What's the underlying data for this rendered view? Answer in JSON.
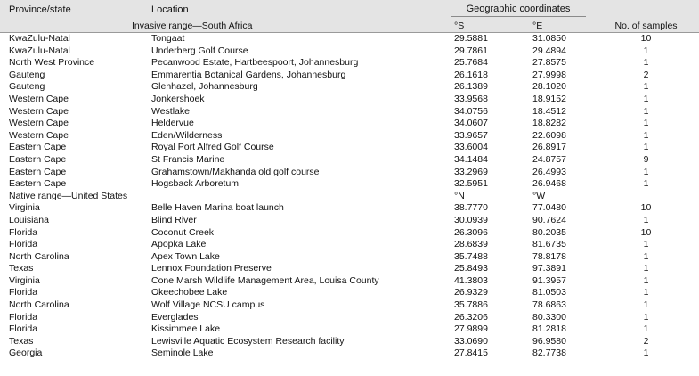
{
  "header": {
    "province": "Province/state",
    "location": "Location",
    "coords": "Geographic coordinates",
    "invasive_label": "Invasive range—South Africa",
    "deg_s": "°S",
    "deg_e": "°E",
    "samples": "No. of samples"
  },
  "native": {
    "label": "Native range—United States",
    "deg_n": "°N",
    "deg_w": "°W"
  },
  "rows_sa": [
    {
      "prov": "KwaZulu-Natal",
      "loc": "Tongaat",
      "a": "29.5881",
      "b": "31.0850",
      "n": "10"
    },
    {
      "prov": "KwaZulu-Natal",
      "loc": "Underberg Golf Course",
      "a": "29.7861",
      "b": "29.4894",
      "n": "1"
    },
    {
      "prov": "North West Province",
      "loc": "Pecanwood Estate, Hartbeespoort, Johannesburg",
      "a": "25.7684",
      "b": "27.8575",
      "n": "1"
    },
    {
      "prov": "Gauteng",
      "loc": "Emmarentia Botanical Gardens, Johannesburg",
      "a": "26.1618",
      "b": "27.9998",
      "n": "2"
    },
    {
      "prov": "Gauteng",
      "loc": "Glenhazel, Johannesburg",
      "a": "26.1389",
      "b": "28.1020",
      "n": "1"
    },
    {
      "prov": "Western Cape",
      "loc": "Jonkershoek",
      "a": "33.9568",
      "b": "18.9152",
      "n": "1"
    },
    {
      "prov": "Western Cape",
      "loc": "Westlake",
      "a": "34.0756",
      "b": "18.4512",
      "n": "1"
    },
    {
      "prov": "Western Cape",
      "loc": "Heldervue",
      "a": "34.0607",
      "b": "18.8282",
      "n": "1"
    },
    {
      "prov": "Western Cape",
      "loc": "Eden/Wilderness",
      "a": "33.9657",
      "b": "22.6098",
      "n": "1"
    },
    {
      "prov": "Eastern Cape",
      "loc": "Royal Port Alfred Golf Course",
      "a": "33.6004",
      "b": "26.8917",
      "n": "1"
    },
    {
      "prov": "Eastern Cape",
      "loc": "St Francis Marine",
      "a": "34.1484",
      "b": "24.8757",
      "n": "9"
    },
    {
      "prov": "Eastern Cape",
      "loc": "Grahamstown/Makhanda old golf course",
      "a": "33.2969",
      "b": "26.4993",
      "n": "1"
    },
    {
      "prov": "Eastern Cape",
      "loc": "Hogsback Arboretum",
      "a": "32.5951",
      "b": "26.9468",
      "n": "1"
    }
  ],
  "rows_us": [
    {
      "prov": "Virginia",
      "loc": "Belle Haven Marina boat launch",
      "a": "38.7770",
      "b": "77.0480",
      "n": "10"
    },
    {
      "prov": "Louisiana",
      "loc": "Blind River",
      "a": "30.0939",
      "b": "90.7624",
      "n": "1"
    },
    {
      "prov": "Florida",
      "loc": "Coconut Creek",
      "a": "26.3096",
      "b": "80.2035",
      "n": "10"
    },
    {
      "prov": "Florida",
      "loc": "Apopka Lake",
      "a": "28.6839",
      "b": "81.6735",
      "n": "1"
    },
    {
      "prov": "North Carolina",
      "loc": "Apex Town Lake",
      "a": "35.7488",
      "b": "78.8178",
      "n": "1"
    },
    {
      "prov": "Texas",
      "loc": "Lennox Foundation Preserve",
      "a": "25.8493",
      "b": "97.3891",
      "n": "1"
    },
    {
      "prov": "Virginia",
      "loc": "Cone Marsh Wildlife Management Area, Louisa County",
      "a": "41.3803",
      "b": "91.3957",
      "n": "1"
    },
    {
      "prov": "Florida",
      "loc": "Okeechobee Lake",
      "a": "26.9329",
      "b": "81.0503",
      "n": "1"
    },
    {
      "prov": "North Carolina",
      "loc": "Wolf Village NCSU campus",
      "a": "35.7886",
      "b": "78.6863",
      "n": "1"
    },
    {
      "prov": "Florida",
      "loc": "Everglades",
      "a": "26.3206",
      "b": "80.3300",
      "n": "1"
    },
    {
      "prov": "Florida",
      "loc": "Kissimmee Lake",
      "a": "27.9899",
      "b": "81.2818",
      "n": "1"
    },
    {
      "prov": "Texas",
      "loc": "Lewisville Aquatic Ecosystem Research facility",
      "a": "33.0690",
      "b": "96.9580",
      "n": "2"
    },
    {
      "prov": "Georgia",
      "loc": "Seminole Lake",
      "a": "27.8415",
      "b": "82.7738",
      "n": "1"
    }
  ]
}
